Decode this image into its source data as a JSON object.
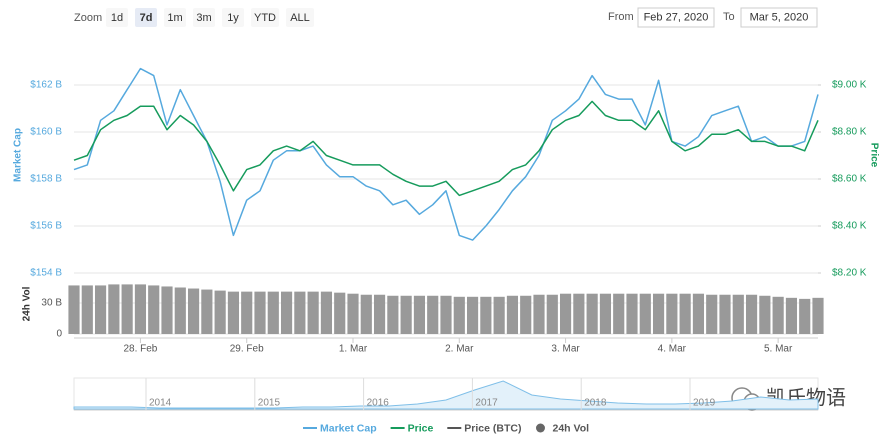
{
  "chart_data": {
    "type": "line",
    "zoom": {
      "label": "Zoom",
      "buttons": [
        "1d",
        "7d",
        "1m",
        "3m",
        "1y",
        "YTD",
        "ALL"
      ],
      "selected": 1
    },
    "range": {
      "from_label": "From",
      "from": "Feb 27, 2020",
      "to_label": "To",
      "to": "Mar 5, 2020"
    },
    "categories": [
      null,
      null,
      null,
      null,
      null,
      "28. Feb",
      null,
      null,
      null,
      null,
      null,
      null,
      null,
      "29. Feb",
      null,
      null,
      null,
      null,
      null,
      null,
      null,
      "1. Mar",
      null,
      null,
      null,
      null,
      null,
      null,
      null,
      "2. Mar",
      null,
      null,
      null,
      null,
      null,
      null,
      null,
      "3. Mar",
      null,
      null,
      null,
      null,
      null,
      null,
      null,
      "4. Mar",
      null,
      null,
      null,
      null,
      null,
      null,
      null,
      "5. Mar",
      null,
      null,
      null
    ],
    "ylabel": "Market Cap",
    "y2label": "Price",
    "vol_label": "24h Vol",
    "ylim": [
      154,
      163
    ],
    "yticks": [
      {
        "value": 154,
        "label": "$154 B"
      },
      {
        "value": 156,
        "label": "$156 B"
      },
      {
        "value": 158,
        "label": "$158 B"
      },
      {
        "value": 160,
        "label": "$160 B"
      },
      {
        "value": 162,
        "label": "$162 B"
      }
    ],
    "y2lim": [
      8200,
      9100
    ],
    "y2ticks": [
      {
        "value": 8200,
        "label": "$8.20 K"
      },
      {
        "value": 8400,
        "label": "$8.40 K"
      },
      {
        "value": 8600,
        "label": "$8.60 K"
      },
      {
        "value": 8800,
        "label": "$8.80 K"
      },
      {
        "value": 9000,
        "label": "$9.00 K"
      }
    ],
    "vol_lim": [
      0,
      60
    ],
    "vol_ticks": [
      0,
      {
        "value": 30,
        "label": "30 B"
      }
    ],
    "grid": true,
    "series": [
      {
        "name": "Market Cap",
        "color": "#56a9de",
        "axis": "y",
        "values": [
          158.4,
          158.6,
          160.5,
          160.9,
          161.8,
          162.7,
          162.4,
          160.3,
          161.8,
          160.7,
          159.6,
          157.9,
          155.6,
          157.1,
          157.5,
          158.8,
          159.2,
          159.2,
          159.4,
          158.6,
          158.1,
          158.1,
          157.7,
          157.5,
          156.9,
          157.1,
          156.5,
          156.9,
          157.5,
          155.6,
          155.4,
          156.0,
          156.7,
          157.5,
          158.1,
          159.0,
          160.5,
          160.9,
          161.4,
          162.4,
          161.6,
          161.4,
          161.4,
          160.3,
          162.2,
          159.6,
          159.4,
          159.8,
          160.7,
          160.9,
          161.1,
          159.6,
          159.8,
          159.4,
          159.4,
          159.6,
          161.6
        ]
      },
      {
        "name": "Price",
        "color": "#169b5c",
        "axis": "y2",
        "values": [
          8680,
          8700,
          8810,
          8850,
          8870,
          8910,
          8910,
          8810,
          8870,
          8830,
          8760,
          8660,
          8550,
          8640,
          8660,
          8720,
          8740,
          8720,
          8760,
          8700,
          8680,
          8660,
          8660,
          8660,
          8620,
          8590,
          8570,
          8570,
          8590,
          8530,
          8550,
          8570,
          8590,
          8640,
          8660,
          8720,
          8810,
          8850,
          8870,
          8930,
          8870,
          8850,
          8850,
          8810,
          8890,
          8760,
          8720,
          8740,
          8790,
          8790,
          8810,
          8760,
          8760,
          8740,
          8740,
          8720,
          8850
        ]
      },
      {
        "name": "Price (BTC)",
        "color": "#555555",
        "visible": false
      },
      {
        "name": "24h Vol",
        "color": "#999999",
        "axis": "vol",
        "values": [
          47,
          47,
          47,
          48,
          48,
          48,
          47,
          46,
          45,
          44,
          43,
          42,
          41,
          41,
          41,
          41,
          41,
          41,
          41,
          41,
          40,
          39,
          38,
          38,
          37,
          37,
          37,
          37,
          37,
          36,
          36,
          36,
          36,
          37,
          37,
          38,
          38,
          39,
          39,
          39,
          39,
          39,
          39,
          39,
          39,
          39,
          39,
          39,
          38,
          38,
          38,
          38,
          37,
          36,
          35,
          34,
          35
        ]
      }
    ],
    "navigator": {
      "years": [
        "2014",
        "2015",
        "2016",
        "2017",
        "2018",
        "2019"
      ],
      "values": [
        2,
        2,
        2,
        1,
        1,
        1,
        1,
        1,
        2,
        2,
        3,
        3,
        5,
        9,
        19,
        28,
        14,
        10,
        8,
        6,
        5,
        5,
        6,
        8,
        12,
        9,
        10
      ]
    },
    "watermark": "凯氏物语"
  }
}
